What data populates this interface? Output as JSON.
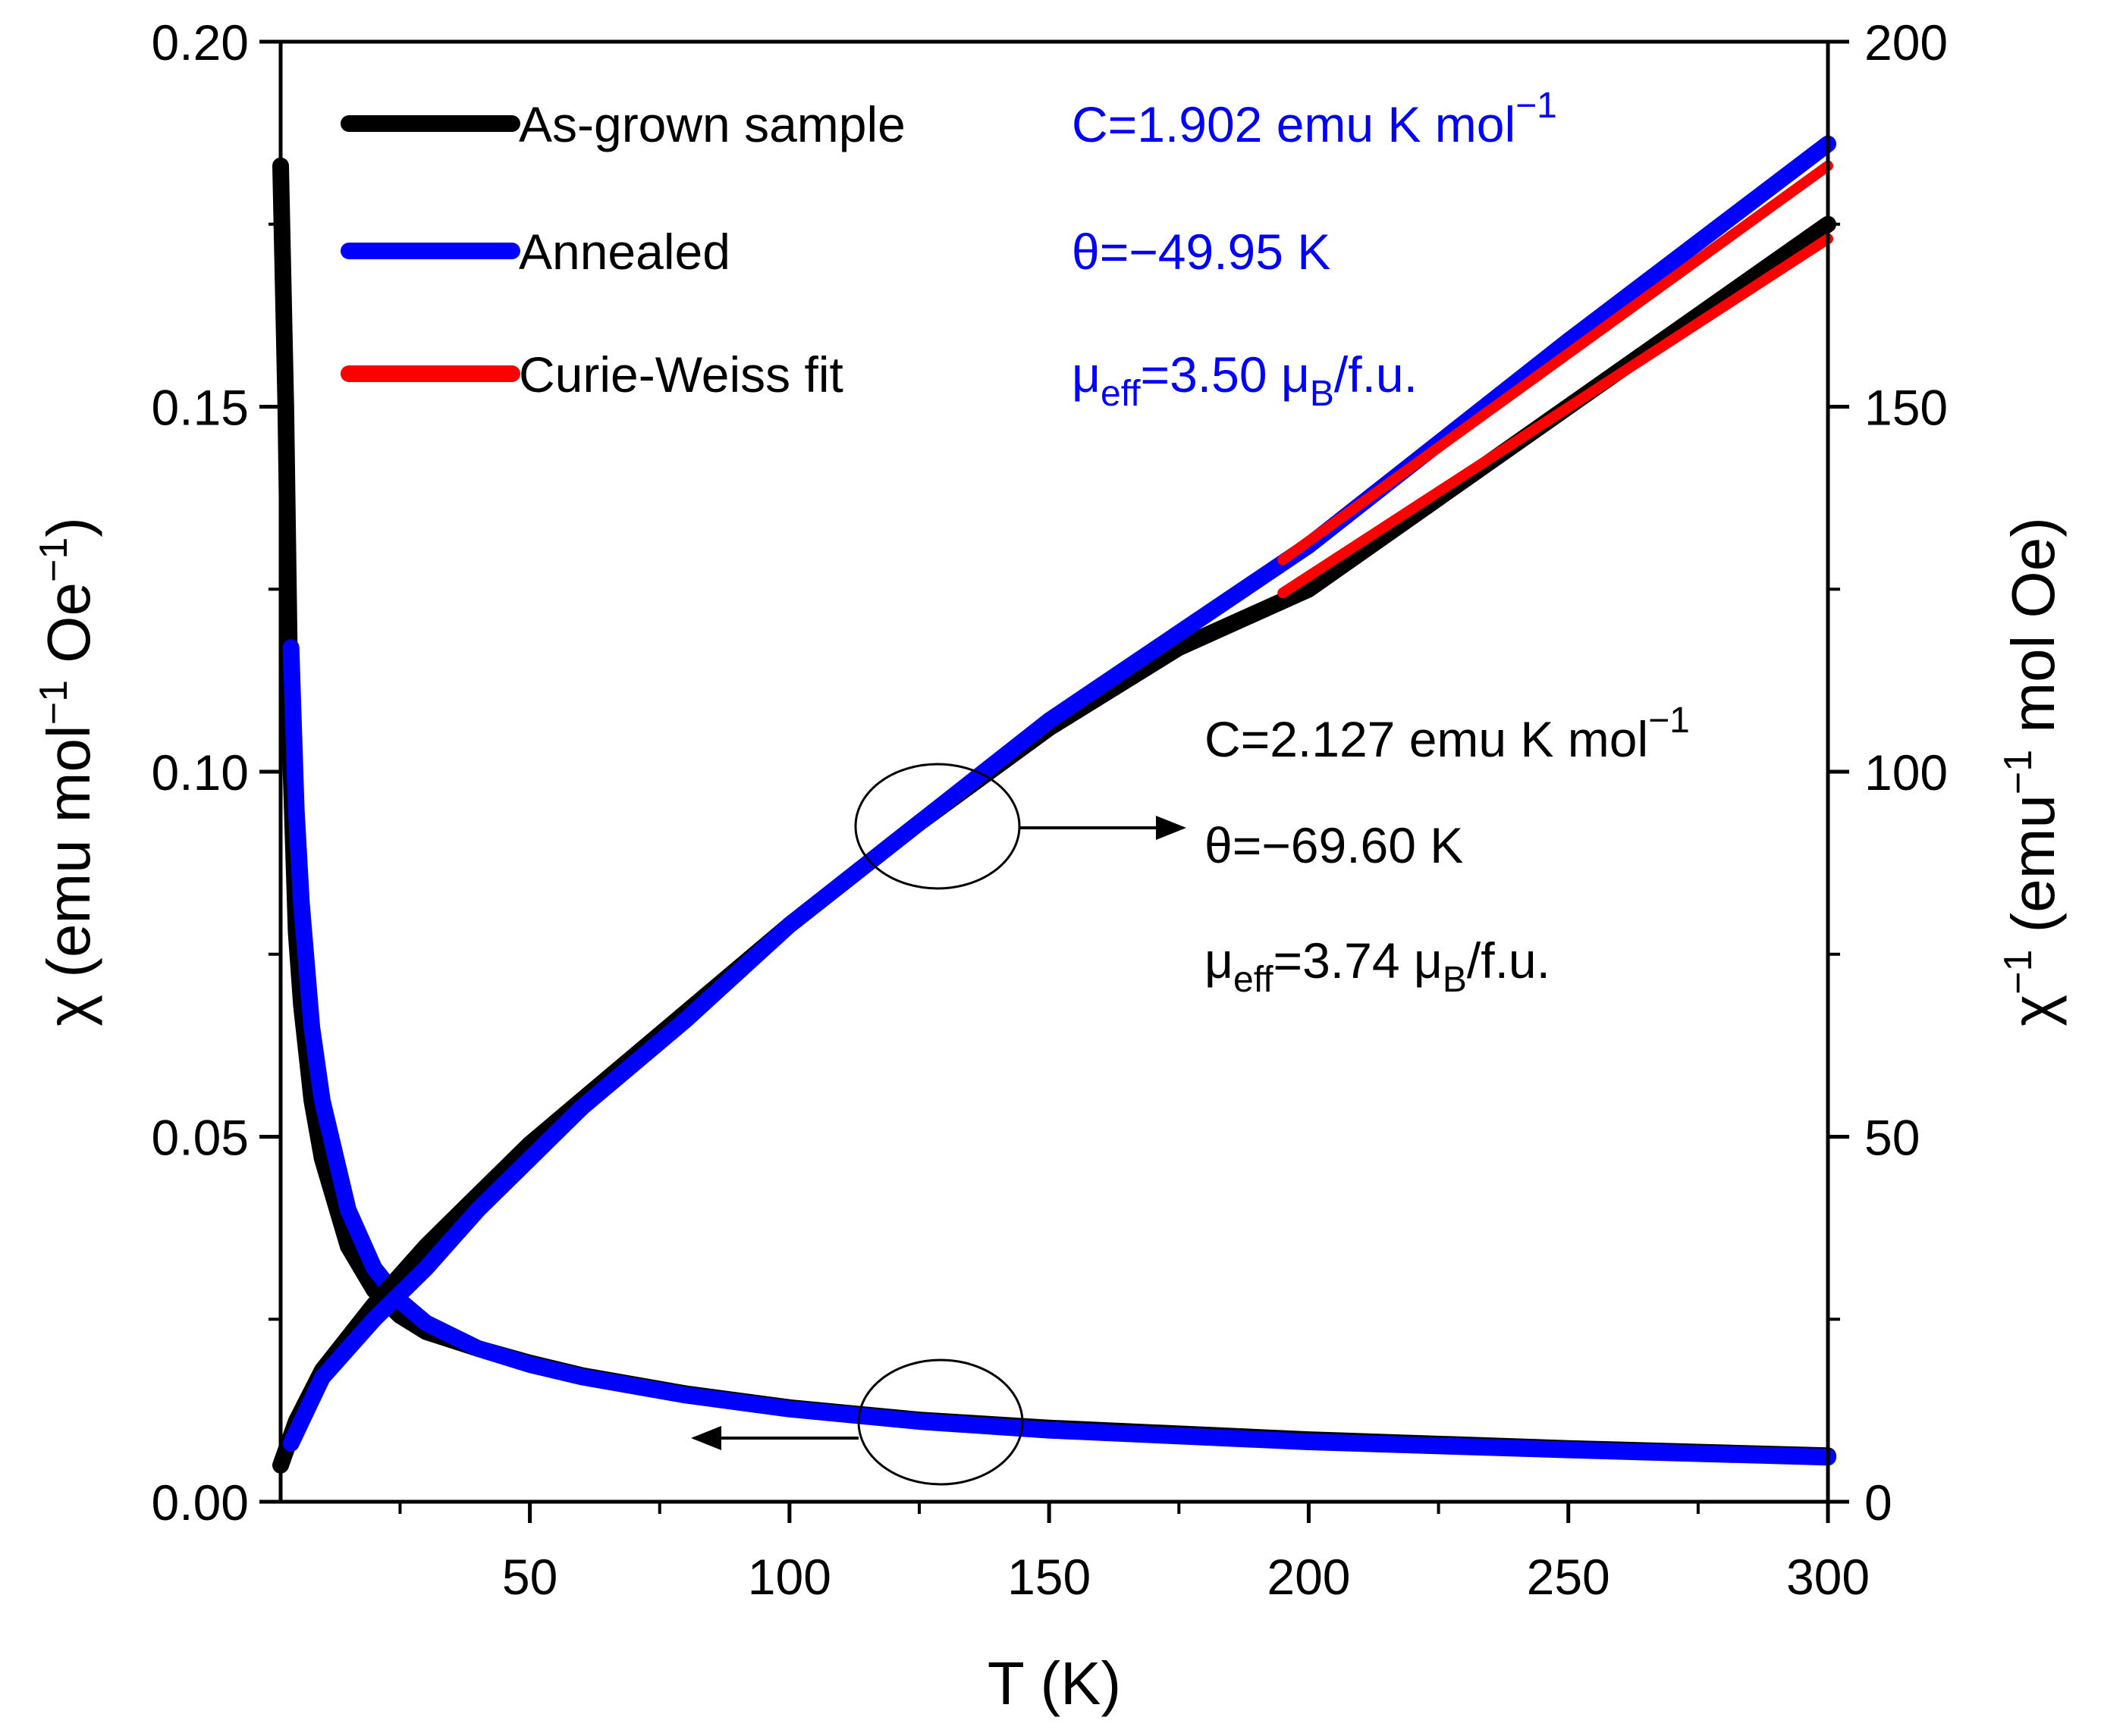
{
  "chart_data": {
    "type": "line",
    "xlabel": "T (K)",
    "ylabel_left": {
      "prefix": "χ (emu mol",
      "sup1": "−1",
      "middle": " Oe",
      "sup2": "−1",
      "suffix": ")"
    },
    "ylabel_right": {
      "prefix": "χ",
      "sup1": "−1",
      "middle": " (emu",
      "sup2": "−1",
      "suffix": " mol Oe)"
    },
    "xlim": [
      2,
      300
    ],
    "ylim_left": [
      0,
      0.2
    ],
    "ylim_right": [
      0,
      200
    ],
    "x_ticks": [
      50,
      100,
      150,
      200,
      250,
      300
    ],
    "x_tick_labels": [
      "50",
      "100",
      "150",
      "200",
      "250",
      "300"
    ],
    "y_left_ticks": [
      0,
      0.05,
      0.1,
      0.15,
      0.2
    ],
    "y_left_tick_labels": [
      "0.00",
      "0.05",
      "0.10",
      "0.15",
      "0.20"
    ],
    "y_right_ticks": [
      0,
      50,
      100,
      150,
      200
    ],
    "y_right_tick_labels": [
      "0",
      "50",
      "100",
      "150",
      "200"
    ],
    "legend": [
      {
        "label": "As-grown sample",
        "color": "#000000"
      },
      {
        "label": "Annealed",
        "color": "#0000ff"
      },
      {
        "label": "Curie-Weiss fit",
        "color": "#ff0000"
      }
    ],
    "series": [
      {
        "name": "As-grown chi(T)",
        "axis": "left",
        "color": "#000000",
        "x": [
          2,
          3,
          4,
          5,
          6,
          8,
          10,
          15,
          20,
          25,
          30,
          40,
          50,
          60,
          80,
          100,
          125,
          150,
          200,
          250,
          300
        ],
        "y": [
          0.183,
          0.15,
          0.1,
          0.078,
          0.068,
          0.055,
          0.047,
          0.035,
          0.029,
          0.0255,
          0.0233,
          0.021,
          0.019,
          0.0173,
          0.0148,
          0.0129,
          0.0112,
          0.0101,
          0.0085,
          0.0073,
          0.0063
        ]
      },
      {
        "name": "Annealed chi(T)",
        "axis": "left",
        "color": "#0000ff",
        "x": [
          4,
          5,
          6,
          8,
          10,
          15,
          20,
          25,
          30,
          40,
          50,
          60,
          80,
          100,
          125,
          150,
          200,
          250,
          300
        ],
        "y": [
          0.117,
          0.095,
          0.082,
          0.065,
          0.055,
          0.04,
          0.032,
          0.0275,
          0.0245,
          0.021,
          0.0188,
          0.0171,
          0.0146,
          0.0127,
          0.011,
          0.0098,
          0.0082,
          0.0071,
          0.0061
        ]
      },
      {
        "name": "As-grown 1/chi(T)",
        "axis": "right",
        "color": "#000000",
        "x": [
          2,
          5,
          10,
          20,
          30,
          40,
          50,
          60,
          80,
          100,
          125,
          150,
          175,
          200,
          250,
          300
        ],
        "y": [
          5,
          11,
          18,
          27,
          35,
          42,
          49,
          55,
          67,
          79,
          93,
          106,
          117,
          125,
          150,
          175
        ]
      },
      {
        "name": "Annealed 1/chi(T)",
        "axis": "right",
        "color": "#0000ff",
        "x": [
          4,
          10,
          20,
          30,
          40,
          50,
          60,
          80,
          100,
          125,
          150,
          175,
          200,
          250,
          300
        ],
        "y": [
          8,
          17,
          25,
          32,
          40,
          47,
          54,
          66,
          79,
          93,
          107,
          119,
          131,
          159,
          186
        ]
      },
      {
        "name": "Curie-Weiss fit (as-grown)",
        "axis": "right",
        "color": "#ff0000",
        "x": [
          195,
          300
        ],
        "y": [
          124.5,
          173
        ]
      },
      {
        "name": "Curie-Weiss fit (annealed)",
        "axis": "right",
        "color": "#ff0000",
        "x": [
          195,
          300
        ],
        "y": [
          129,
          183
        ]
      }
    ],
    "annotations": {
      "annealed": {
        "color": "#0000ff",
        "C": {
          "text": "C=1.902 emu K mol",
          "sup": "−1"
        },
        "theta": {
          "text": "θ=−49.95 K"
        },
        "mu": {
          "prefix": "μ",
          "sub1": "eff",
          "middle": "=3.50 μ",
          "sub2": "B",
          "suffix": "/f.u."
        }
      },
      "as_grown": {
        "color": "#000000",
        "C": {
          "text": "C=2.127 emu K mol",
          "sup": "−1"
        },
        "theta": {
          "text": "θ=−69.60 K"
        },
        "mu": {
          "prefix": "μ",
          "sub1": "eff",
          "middle": "=3.74 μ",
          "sub2": "B",
          "suffix": "/f.u."
        }
      }
    }
  }
}
